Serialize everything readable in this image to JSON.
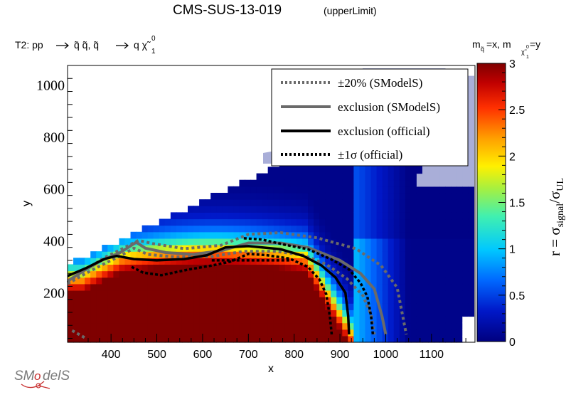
{
  "header": {
    "title": "CMS-SUS-13-019",
    "title_suffix": "(upperLimit)",
    "process_prefix": "T2: pp",
    "process_part1": "q̃ q̃, q̃",
    "process_part2": "q χ̃",
    "process_sup": "0",
    "process_sub": "1",
    "mass_assign": "m",
    "mass_assign_sub": "q̃",
    "mass_assign_mid": "=x, m",
    "mass_assign_sub2": "χ̃",
    "mass_assign_sup2": "0",
    "mass_assign_sub2b": "1",
    "mass_assign_end": "=y"
  },
  "logo": {
    "text_left": "SM",
    "text_o": "o",
    "text_right": "delS"
  },
  "colors": {
    "excl_smodels": "#6a6a6a",
    "excl_official": "#000000",
    "excluded_fill": "#7f0000",
    "missing_region": "#a9aed8"
  },
  "chart_data": {
    "type": "heatmap",
    "xlabel": "x",
    "ylabel": "y",
    "xlim": [
      305,
      1195
    ],
    "ylim": [
      10,
      1075
    ],
    "x_ticks": [
      400,
      500,
      600,
      700,
      800,
      900,
      1000,
      1100
    ],
    "y_ticks": [
      200,
      400,
      600,
      800,
      1000
    ],
    "colorbar": {
      "label": "r = σsignal/σUL",
      "label_main": "r = σ",
      "label_sub1": "signal",
      "label_slash": "/σ",
      "label_sub2": "UL",
      "min": 0,
      "max": 3,
      "ticks": [
        "0",
        "0.5",
        "1",
        "1.5",
        "2",
        "2.5",
        "3"
      ]
    },
    "grid": false,
    "legend_position": "top-right",
    "legend": [
      {
        "label": "±20% (SModelS)",
        "style": "dotted",
        "color": "#6a6a6a"
      },
      {
        "label": "exclusion (SModelS)",
        "style": "solid",
        "color": "#6a6a6a"
      },
      {
        "label": "exclusion (official)",
        "style": "solid",
        "color": "#000000"
      },
      {
        "label": "±1σ (official)",
        "style": "dotted",
        "color": "#000000"
      }
    ],
    "series": [
      {
        "name": "exclusion (SModelS)",
        "points": [
          [
            305,
            245
          ],
          [
            340,
            285
          ],
          [
            380,
            325
          ],
          [
            420,
            355
          ],
          [
            455,
            395
          ],
          [
            475,
            372
          ],
          [
            520,
            355
          ],
          [
            580,
            348
          ],
          [
            640,
            362
          ],
          [
            700,
            392
          ],
          [
            770,
            392
          ],
          [
            830,
            375
          ],
          [
            900,
            325
          ],
          [
            945,
            275
          ],
          [
            975,
            215
          ],
          [
            992,
            110
          ],
          [
            1000,
            40
          ]
        ]
      },
      {
        "name": "+20% (SModelS)",
        "points": [
          [
            305,
            240
          ],
          [
            345,
            290
          ],
          [
            385,
            335
          ],
          [
            425,
            370
          ],
          [
            460,
            402
          ],
          [
            490,
            390
          ],
          [
            560,
            370
          ],
          [
            640,
            383
          ],
          [
            700,
            425
          ],
          [
            770,
            432
          ],
          [
            850,
            412
          ],
          [
            935,
            370
          ],
          [
            990,
            305
          ],
          [
            1025,
            220
          ],
          [
            1035,
            130
          ],
          [
            1045,
            40
          ]
        ]
      },
      {
        "name": "-20% (SModelS)",
        "points": [
          [
            315,
            55
          ],
          [
            330,
            40
          ],
          [
            345,
            25
          ]
        ]
      },
      {
        "name": "-20% (SModelS) upper",
        "points": [
          [
            305,
            235
          ],
          [
            345,
            275
          ],
          [
            385,
            312
          ],
          [
            420,
            342
          ],
          [
            450,
            372
          ],
          [
            480,
            348
          ],
          [
            540,
            338
          ],
          [
            620,
            340
          ],
          [
            690,
            360
          ],
          [
            760,
            360
          ],
          [
            820,
            345
          ],
          [
            870,
            310
          ],
          [
            915,
            255
          ],
          [
            950,
            190
          ],
          [
            968,
            115
          ],
          [
            975,
            40
          ]
        ]
      },
      {
        "name": "exclusion (official)",
        "points": [
          [
            305,
            265
          ],
          [
            345,
            295
          ],
          [
            385,
            330
          ],
          [
            412,
            342
          ],
          [
            450,
            330
          ],
          [
            500,
            325
          ],
          [
            560,
            330
          ],
          [
            610,
            345
          ],
          [
            650,
            375
          ],
          [
            700,
            380
          ],
          [
            770,
            368
          ],
          [
            820,
            342
          ],
          [
            860,
            305
          ],
          [
            890,
            260
          ],
          [
            912,
            200
          ],
          [
            918,
            110
          ],
          [
            920,
            40
          ]
        ]
      },
      {
        "name": "+1σ (official)",
        "points": [
          [
            690,
            410
          ],
          [
            730,
            405
          ],
          [
            780,
            385
          ],
          [
            830,
            368
          ],
          [
            880,
            330
          ],
          [
            920,
            290
          ],
          [
            945,
            238
          ],
          [
            960,
            185
          ],
          [
            968,
            110
          ],
          [
            972,
            40
          ]
        ]
      },
      {
        "name": "-1σ (official)",
        "points": [
          [
            445,
            300
          ],
          [
            470,
            278
          ],
          [
            510,
            268
          ],
          [
            570,
            290
          ],
          [
            620,
            305
          ],
          [
            660,
            320
          ],
          [
            700,
            350
          ],
          [
            740,
            345
          ],
          [
            790,
            332
          ],
          [
            830,
            300
          ],
          [
            855,
            252
          ],
          [
            870,
            195
          ],
          [
            878,
            110
          ],
          [
            882,
            40
          ]
        ]
      },
      {
        "name": "-1σ (official) flat",
        "points": [
          [
            620,
            325
          ],
          [
            790,
            325
          ]
        ]
      }
    ]
  }
}
